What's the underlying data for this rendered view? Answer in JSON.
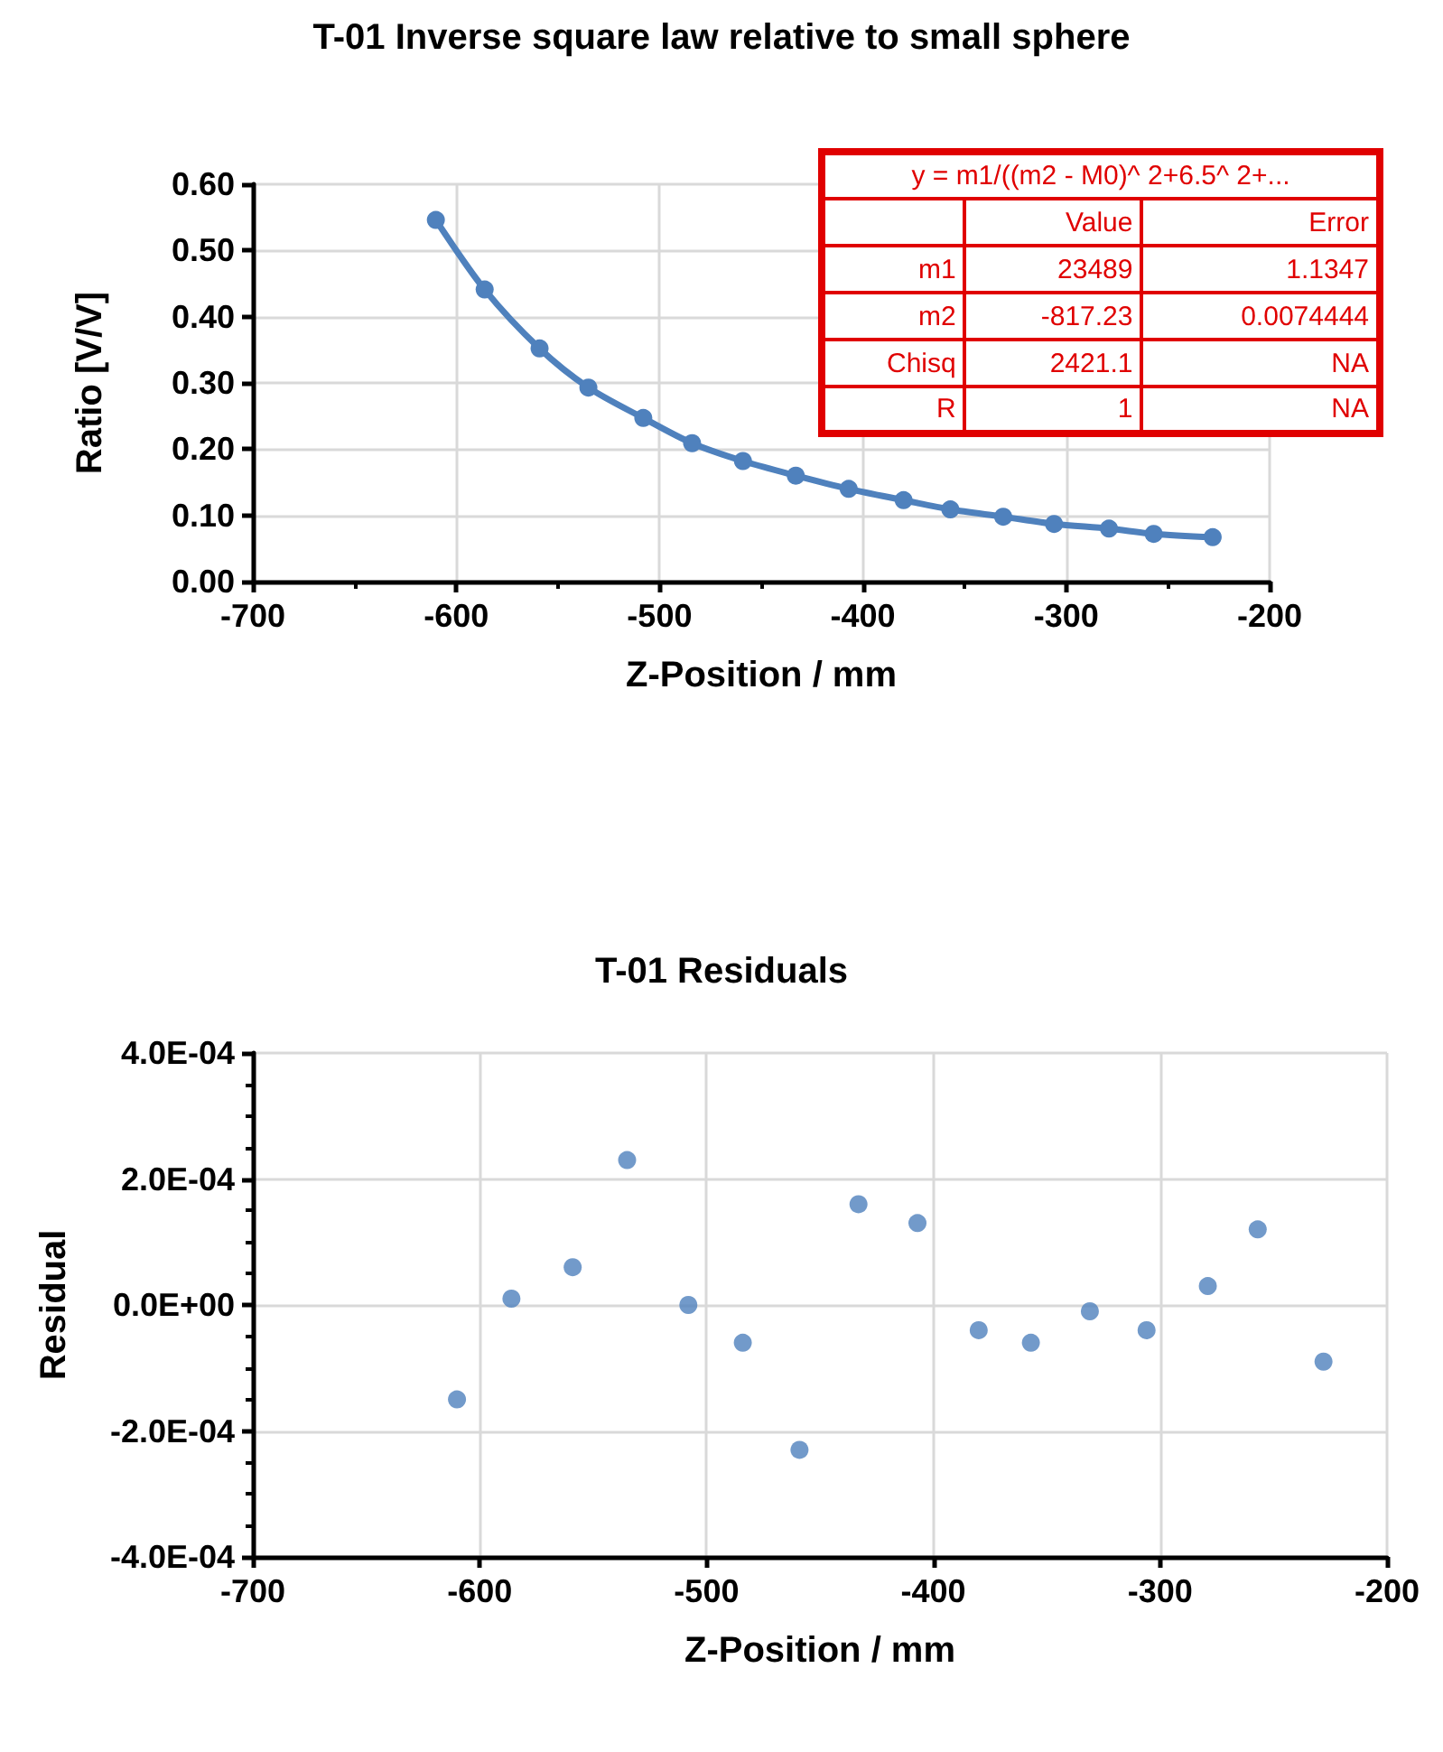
{
  "chart_data": [
    {
      "type": "line",
      "title": "T-01 Inverse square law relative to small sphere",
      "xlabel": "Z-Position / mm",
      "ylabel": "Ratio [V/V]",
      "x": [
        -610,
        -586,
        -559,
        -535,
        -508,
        -484,
        -459,
        -433,
        -407,
        -380,
        -357,
        -331,
        -306,
        -279,
        -257,
        -228
      ],
      "series": [
        {
          "color": "#4f81bd",
          "values": [
            0.546,
            0.441,
            0.352,
            0.293,
            0.247,
            0.209,
            0.182,
            0.16,
            0.14,
            0.123,
            0.109,
            0.098,
            0.087,
            0.08,
            0.072,
            0.067
          ]
        }
      ],
      "xlim": [
        -700,
        -200
      ],
      "xticks": [
        -700,
        -600,
        -500,
        -400,
        -300,
        -200
      ],
      "ylim": [
        0,
        0.6
      ],
      "yticks": [
        {
          "value": 0,
          "label": "0.00"
        },
        {
          "value": 0.1,
          "label": "0.10"
        },
        {
          "value": 0.2,
          "label": "0.20"
        },
        {
          "value": 0.3,
          "label": "0.30"
        },
        {
          "value": 0.4,
          "label": "0.40"
        },
        {
          "value": 0.5,
          "label": "0.50"
        },
        {
          "value": 0.6,
          "label": "0.60"
        }
      ],
      "grid": true,
      "marker": "circle",
      "line_style": "solid",
      "annotations": [
        "y = m1/((m2 - M0)^ 2+6.5^ 2+...",
        "Value",
        "Error",
        "m1",
        "23489",
        "1.1347",
        "m2",
        "-817.23",
        "0.0074444",
        "Chisq",
        "2421.1",
        "NA",
        "R",
        "1",
        "NA"
      ]
    },
    {
      "type": "scatter",
      "title": "T-01 Residuals",
      "xlabel": "Z-Position / mm",
      "ylabel": "Residual",
      "x": [
        -610,
        -586,
        -559,
        -535,
        -508,
        -484,
        -459,
        -433,
        -407,
        -380,
        -357,
        -331,
        -306,
        -279,
        -257,
        -228
      ],
      "series": [
        {
          "color": "#4f81bd",
          "values": [
            -0.00015,
            1e-05,
            6e-05,
            0.00023,
            0,
            -6e-05,
            -0.00023,
            0.00016,
            0.00013,
            -4e-05,
            -6e-05,
            -1e-05,
            -4e-05,
            3e-05,
            0.00012,
            -9e-05
          ]
        }
      ],
      "xlim": [
        -700,
        -200
      ],
      "xticks": [
        -700,
        -600,
        -500,
        -400,
        -300,
        -200
      ],
      "ylim": [
        -0.0004,
        0.0004
      ],
      "yticks": [
        {
          "value": -0.0004,
          "label": "-4.0E-04"
        },
        {
          "value": -0.0002,
          "label": "-2.0E-04"
        },
        {
          "value": 0,
          "label": "0.0E+00"
        },
        {
          "value": 0.0002,
          "label": "2.0E-04"
        },
        {
          "value": 0.0004,
          "label": "4.0E-04"
        }
      ],
      "grid": true,
      "marker": "circle"
    }
  ]
}
